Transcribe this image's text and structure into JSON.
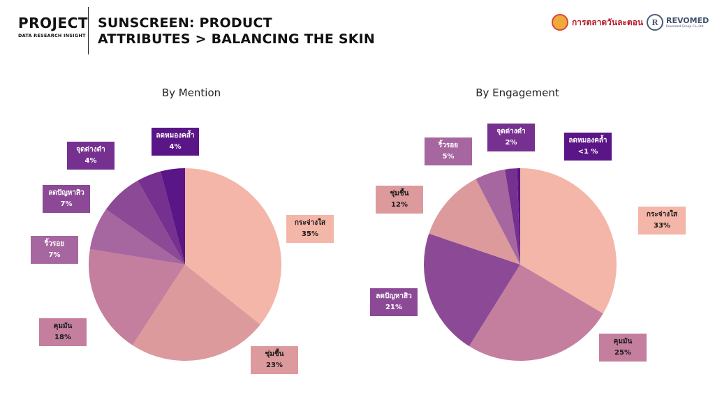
{
  "header": {
    "brand_title": "PROJECT",
    "brand_sub": "DATA RESEARCH INSIGHT",
    "title_line1": "SUNSCREEN: PRODUCT",
    "title_line2": "ATTRIBUTES > BALANCING THE SKIN"
  },
  "logos": {
    "market_name": "การตลาดวันละตอน",
    "revo_name": "REVOMED",
    "revo_sub": "Revomed Group Co.,Ltd."
  },
  "colors": {
    "kra_jang_sai": "#f4b6a8",
    "chum_chuen": "#dc9a9c",
    "khum_man": "#c47f9e",
    "rio_roi": "#a6669f",
    "lot_panha_sio": "#8c4a96",
    "jut_dang_dam": "#76308f",
    "lot_mong_khla": "#5a1586"
  },
  "chart_data": [
    {
      "type": "pie",
      "title": "By Mention",
      "slices": [
        {
          "key": "kra_jang_sai",
          "label": "กระจ่างใส",
          "value": 35,
          "value_label": "35%"
        },
        {
          "key": "chum_chuen",
          "label": "ชุ่มชื้น",
          "value": 23,
          "value_label": "23%"
        },
        {
          "key": "khum_man",
          "label": "คุมมัน",
          "value": 18,
          "value_label": "18%"
        },
        {
          "key": "rio_roi",
          "label": "ริ้วรอย",
          "value": 7,
          "value_label": "7%"
        },
        {
          "key": "lot_panha_sio",
          "label": "ลดปัญหาสิว",
          "value": 7,
          "value_label": "7%"
        },
        {
          "key": "jut_dang_dam",
          "label": "จุดด่างดำ",
          "value": 4,
          "value_label": "4%"
        },
        {
          "key": "lot_mong_khla",
          "label": "ลดหมองคล้ำ",
          "value": 4,
          "value_label": "4%"
        }
      ]
    },
    {
      "type": "pie",
      "title": "By Engagement",
      "slices": [
        {
          "key": "kra_jang_sai",
          "label": "กระจ่างใส",
          "value": 33,
          "value_label": "33%"
        },
        {
          "key": "khum_man",
          "label": "คุมมัน",
          "value": 25,
          "value_label": "25%"
        },
        {
          "key": "lot_panha_sio",
          "label": "ลดปัญหาสิว",
          "value": 21,
          "value_label": "21%"
        },
        {
          "key": "chum_chuen",
          "label": "ชุ่มชื้น",
          "value": 12,
          "value_label": "12%"
        },
        {
          "key": "rio_roi",
          "label": "ริ้วรอย",
          "value": 5,
          "value_label": "5%"
        },
        {
          "key": "jut_dang_dam",
          "label": "จุดด่างดำ",
          "value": 2,
          "value_label": "2%"
        },
        {
          "key": "lot_mong_khla",
          "label": "ลดหมองคล้ำ",
          "value": 0.5,
          "value_label": "<1 %"
        }
      ]
    }
  ]
}
